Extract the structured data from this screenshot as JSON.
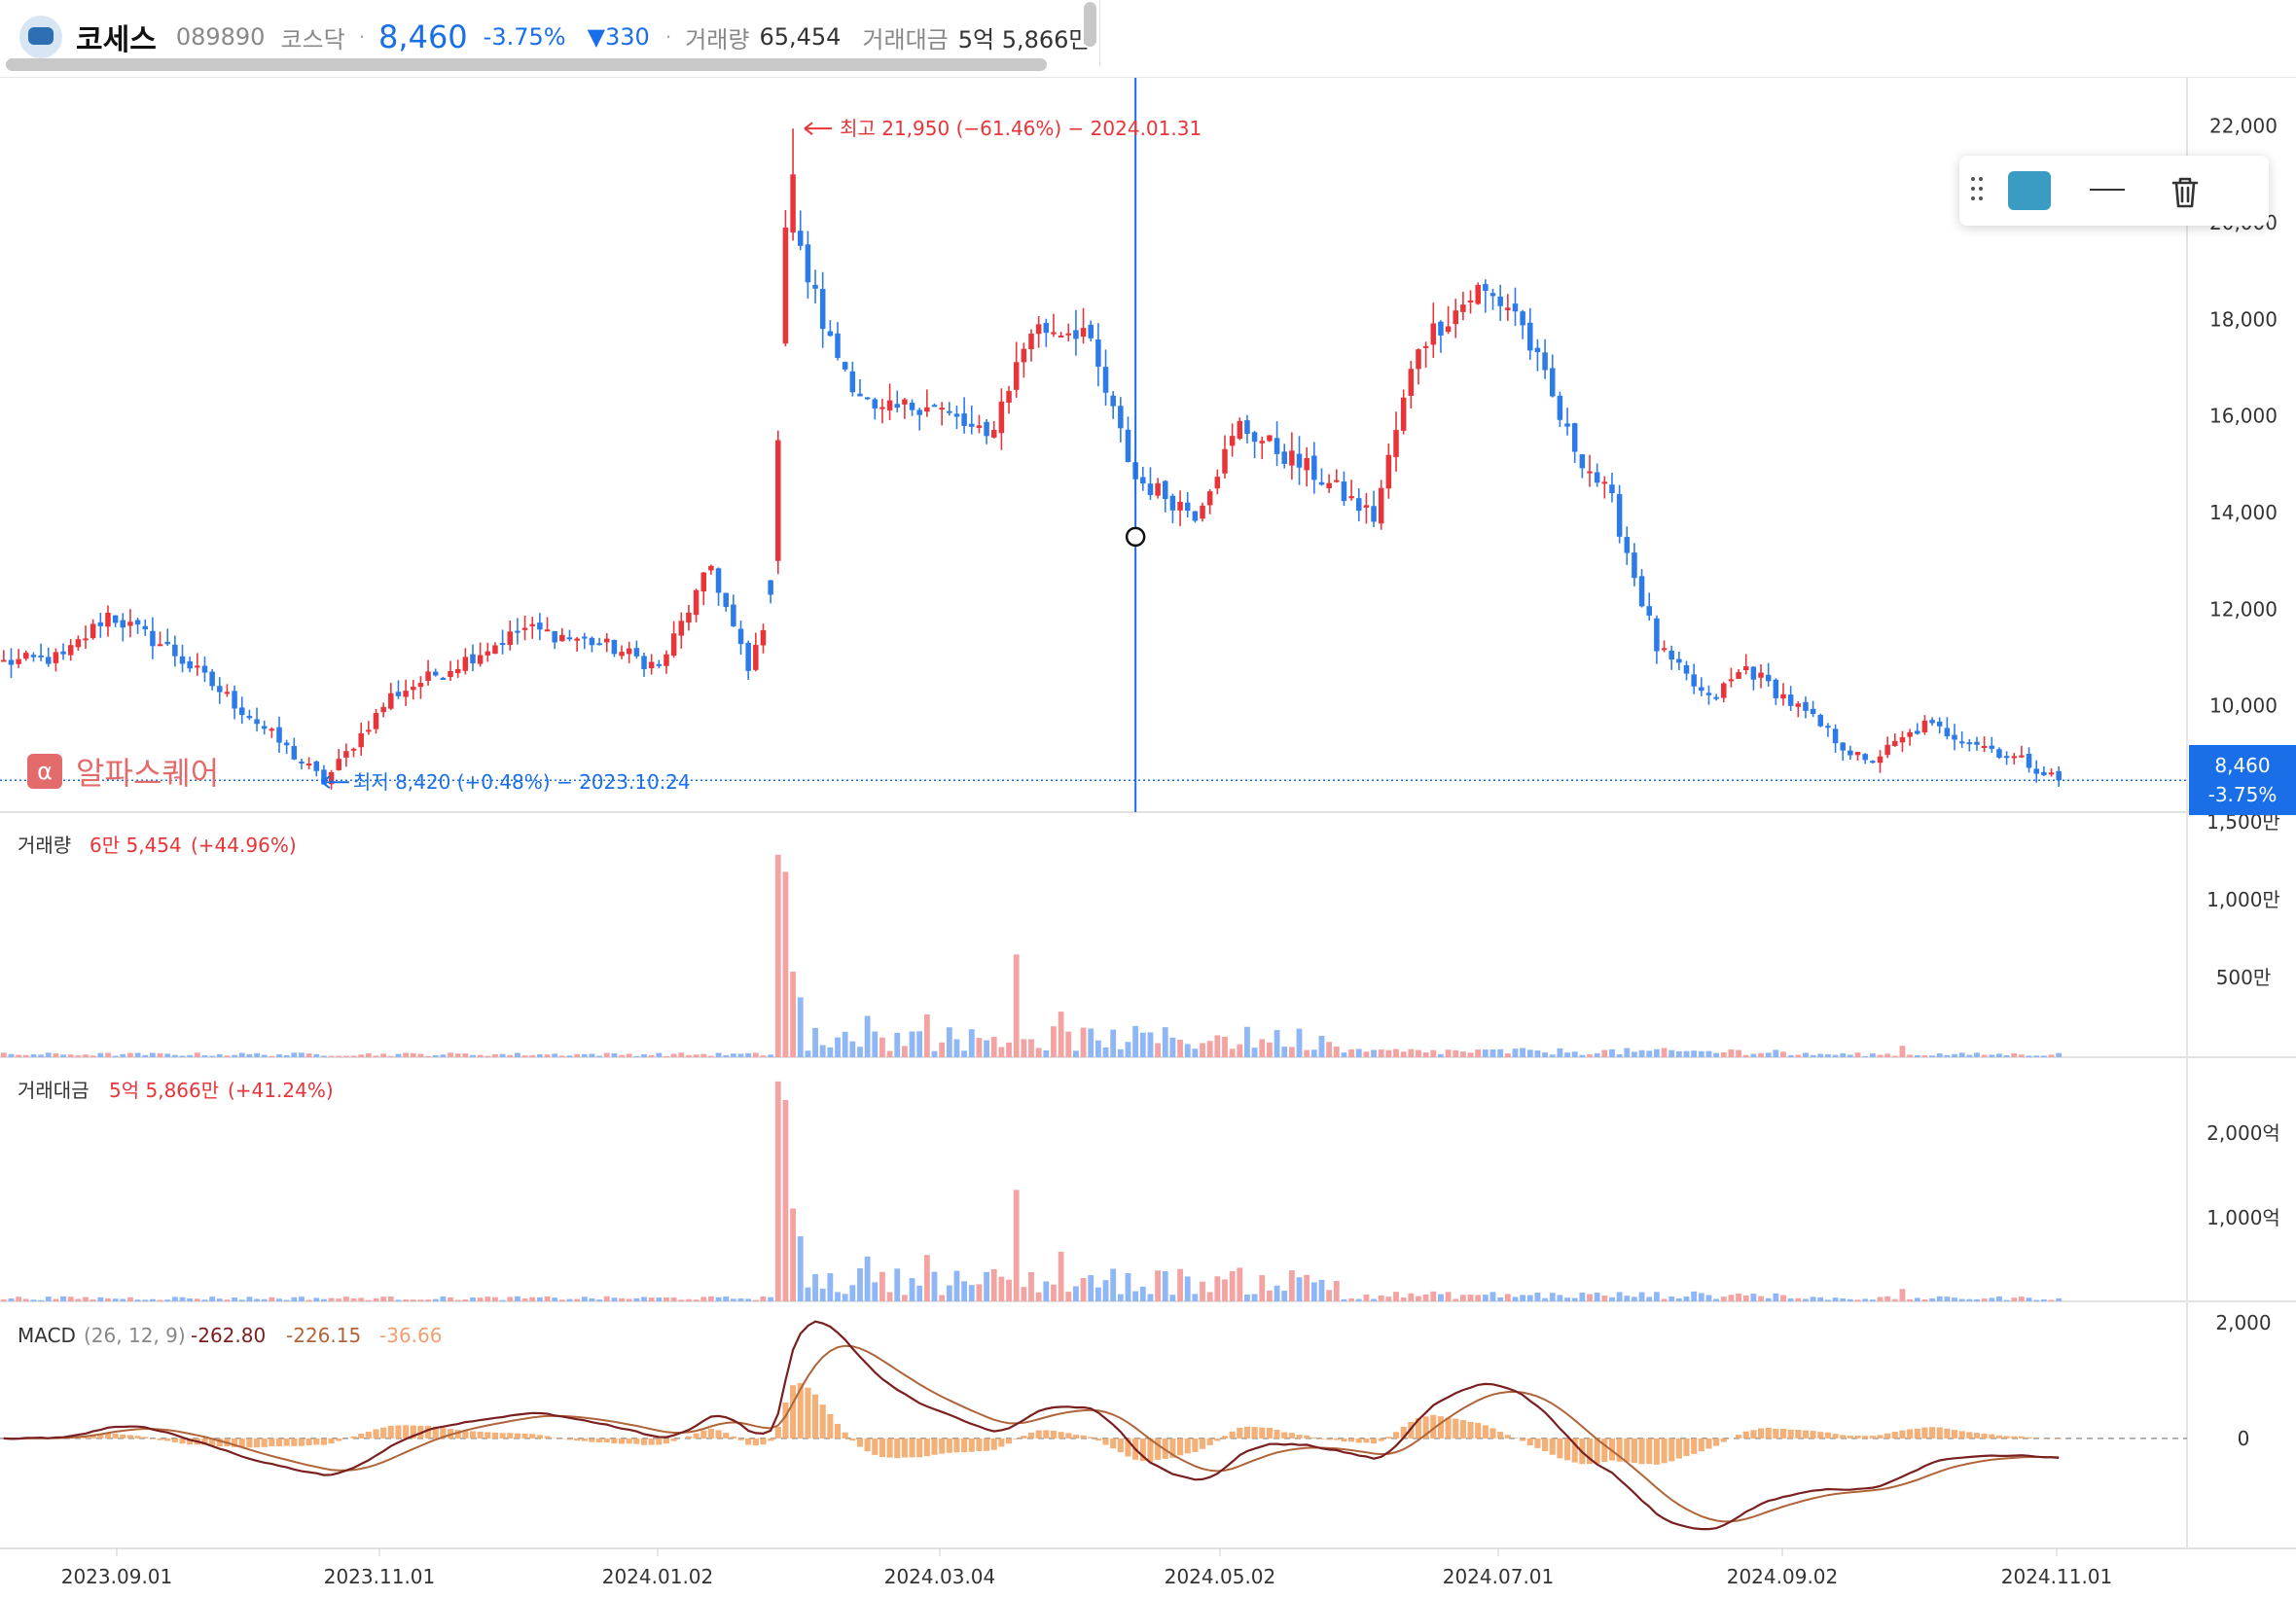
{
  "header": {
    "stock_name": "코세스",
    "code": "089890",
    "market": "코스닥",
    "separator": "·",
    "price": "8,460",
    "change_pct": "-3.75%",
    "change": "▼330",
    "volume_label": "거래량",
    "volume": "65,454",
    "amount_label": "거래대금",
    "amount": "5억 5,866만"
  },
  "price_axis": [
    "22,000",
    "20,000",
    "18,000",
    "16,000",
    "14,000",
    "12,000",
    "10,000"
  ],
  "current_price": {
    "price": "8,460",
    "pct": "-3.75%"
  },
  "annotations": {
    "high": "최고 21,950 (−61.46%) − 2024.01.31",
    "low": "최저 8,420 (+0.48%) − 2023.10.24"
  },
  "watermark": {
    "icon": "α",
    "text": "알파스퀘어"
  },
  "toolbar": {
    "color": "#3a9cc3",
    "grip_icon": "grip-icon",
    "line_icon": "line-style-icon",
    "trash_icon": "trash-icon"
  },
  "volume_panel": {
    "label": "거래량",
    "value": "6만 5,454",
    "change": "(+44.96%)",
    "axis": [
      "1,500만",
      "1,000만",
      "500만"
    ]
  },
  "amount_panel": {
    "label": "거래대금",
    "value": "5억 5,866만",
    "change": "(+41.24%)",
    "axis": [
      "2,000억",
      "1,000억"
    ]
  },
  "macd_panel": {
    "label": "MACD",
    "params": "(26, 12, 9)",
    "macd": "-262.80",
    "signal": "-226.15",
    "hist": "-36.66",
    "axis": [
      "2,000",
      "0"
    ]
  },
  "x_axis": [
    "2023.09.01",
    "2023.11.01",
    "2024.01.02",
    "2024.03.04",
    "2024.05.02",
    "2024.07.01",
    "2024.09.02",
    "2024.11.01"
  ],
  "colors": {
    "up": "#e8353a",
    "down": "#2d7be8",
    "up_light": "#f4a3a3",
    "down_light": "#8fb7f5",
    "macd": "#7a1f1f",
    "signal": "#b0643a",
    "hist": "#f2a86a"
  },
  "chart_data": {
    "type": "candlestick",
    "price_range": [
      7800,
      23000
    ],
    "x_dates": [
      "2023.09.01",
      "2023.11.01",
      "2024.01.02",
      "2024.03.04",
      "2024.05.02",
      "2024.07.01",
      "2024.09.02",
      "2024.11.01"
    ],
    "anchors": [
      [
        0,
        10900
      ],
      [
        8,
        11000
      ],
      [
        14,
        11900
      ],
      [
        22,
        11200
      ],
      [
        33,
        9800
      ],
      [
        43,
        8420
      ],
      [
        52,
        10200
      ],
      [
        60,
        10800
      ],
      [
        70,
        11600
      ],
      [
        80,
        11300
      ],
      [
        88,
        10800
      ],
      [
        95,
        12900
      ],
      [
        100,
        10700
      ],
      [
        103,
        12200
      ],
      [
        106,
        19800
      ],
      [
        111,
        17500
      ],
      [
        117,
        16000
      ],
      [
        124,
        16300
      ],
      [
        132,
        15500
      ],
      [
        138,
        17800
      ],
      [
        145,
        17800
      ],
      [
        152,
        14700
      ],
      [
        160,
        14000
      ],
      [
        166,
        15800
      ],
      [
        176,
        14800
      ],
      [
        184,
        13900
      ],
      [
        190,
        17500
      ],
      [
        198,
        18600
      ],
      [
        203,
        18200
      ],
      [
        210,
        15600
      ],
      [
        216,
        14200
      ],
      [
        222,
        11200
      ],
      [
        229,
        10100
      ],
      [
        234,
        10800
      ],
      [
        243,
        9700
      ],
      [
        250,
        8800
      ],
      [
        258,
        9600
      ],
      [
        264,
        9300
      ],
      [
        272,
        8800
      ],
      [
        276,
        8460
      ]
    ],
    "volume_range_man": [
      0,
      1650
    ],
    "volume_spikes": [
      [
        104,
        1420
      ],
      [
        105,
        1300
      ],
      [
        106,
        600
      ],
      [
        107,
        420
      ],
      [
        116,
        290
      ],
      [
        124,
        300
      ],
      [
        136,
        720
      ],
      [
        142,
        320
      ],
      [
        255,
        80
      ]
    ],
    "amount_range_eok": [
      0,
      2800
    ],
    "macd_range": [
      -1900,
      2200
    ]
  }
}
